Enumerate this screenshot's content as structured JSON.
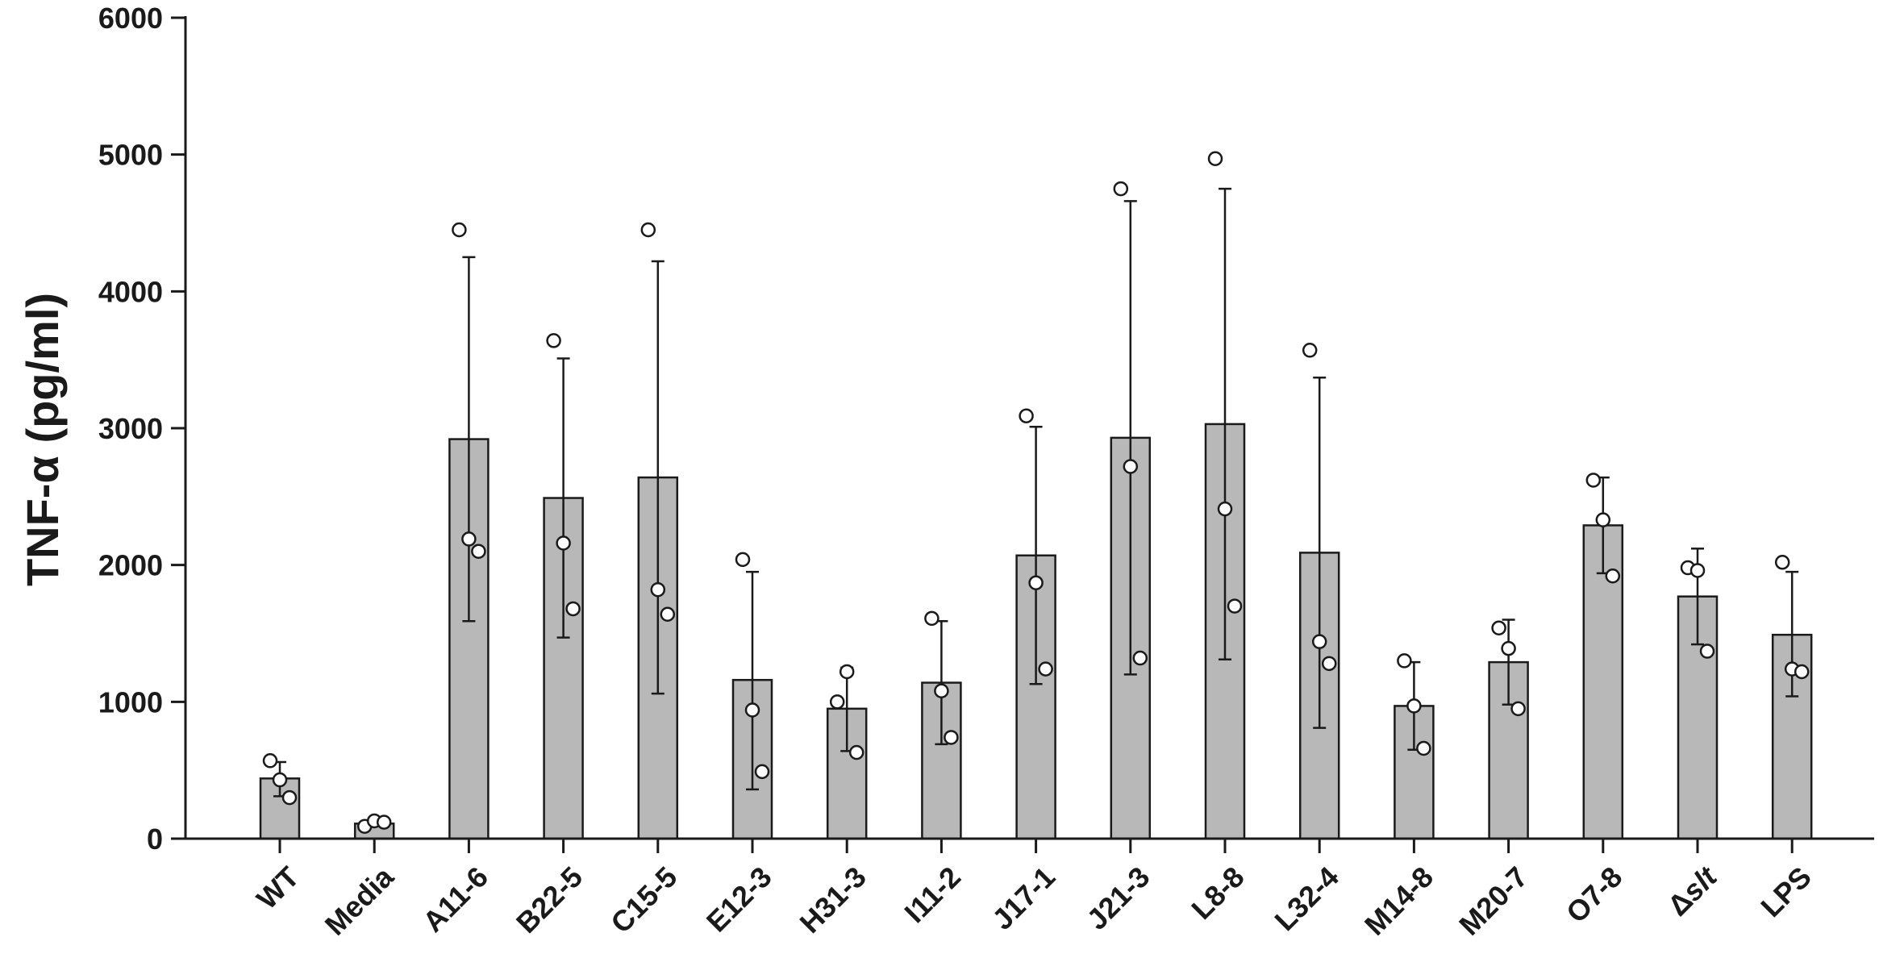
{
  "chart_data": {
    "type": "bar",
    "title": "",
    "xlabel": "",
    "ylabel": "TNF-α (pg/ml)",
    "ylim": [
      0,
      6000
    ],
    "yticks": [
      0,
      1000,
      2000,
      3000,
      4000,
      5000,
      6000
    ],
    "grid": false,
    "legend": "none",
    "bar_color": "#b8b8b8",
    "categories": [
      "WT",
      "Media",
      "A11-6",
      "B22-5",
      "C15-5",
      "E12-3",
      "H31-3",
      "I11-2",
      "J17-1",
      "J21-3",
      "L8-8",
      "L32-4",
      "M14-8",
      "M20-7",
      "O7-8",
      "Δslt",
      "LPS"
    ],
    "values": [
      440,
      110,
      2920,
      2490,
      2640,
      1160,
      950,
      1140,
      2070,
      2930,
      3030,
      2090,
      970,
      1290,
      2290,
      1770,
      1490
    ],
    "error_upper": [
      560,
      130,
      4250,
      3510,
      4220,
      1950,
      1250,
      1590,
      3010,
      4660,
      4750,
      3370,
      1290,
      1600,
      2640,
      2120,
      1950
    ],
    "error_lower": [
      310,
      90,
      1590,
      1470,
      1060,
      360,
      640,
      690,
      1130,
      1200,
      1310,
      810,
      650,
      980,
      1940,
      1420,
      1040
    ],
    "points": [
      [
        570,
        430,
        300
      ],
      [
        90,
        130,
        120
      ],
      [
        4450,
        2190,
        2100
      ],
      [
        3640,
        2160,
        1680
      ],
      [
        4450,
        1820,
        1640
      ],
      [
        2040,
        940,
        490
      ],
      [
        1000,
        1220,
        630
      ],
      [
        1610,
        1080,
        740
      ],
      [
        3090,
        1870,
        1240
      ],
      [
        4750,
        2720,
        1320
      ],
      [
        4970,
        2410,
        1700
      ],
      [
        3570,
        1440,
        1280
      ],
      [
        1300,
        970,
        660
      ],
      [
        1540,
        1390,
        950
      ],
      [
        2620,
        2330,
        1920
      ],
      [
        1980,
        1960,
        1370
      ],
      [
        2020,
        1240,
        1220
      ]
    ]
  }
}
